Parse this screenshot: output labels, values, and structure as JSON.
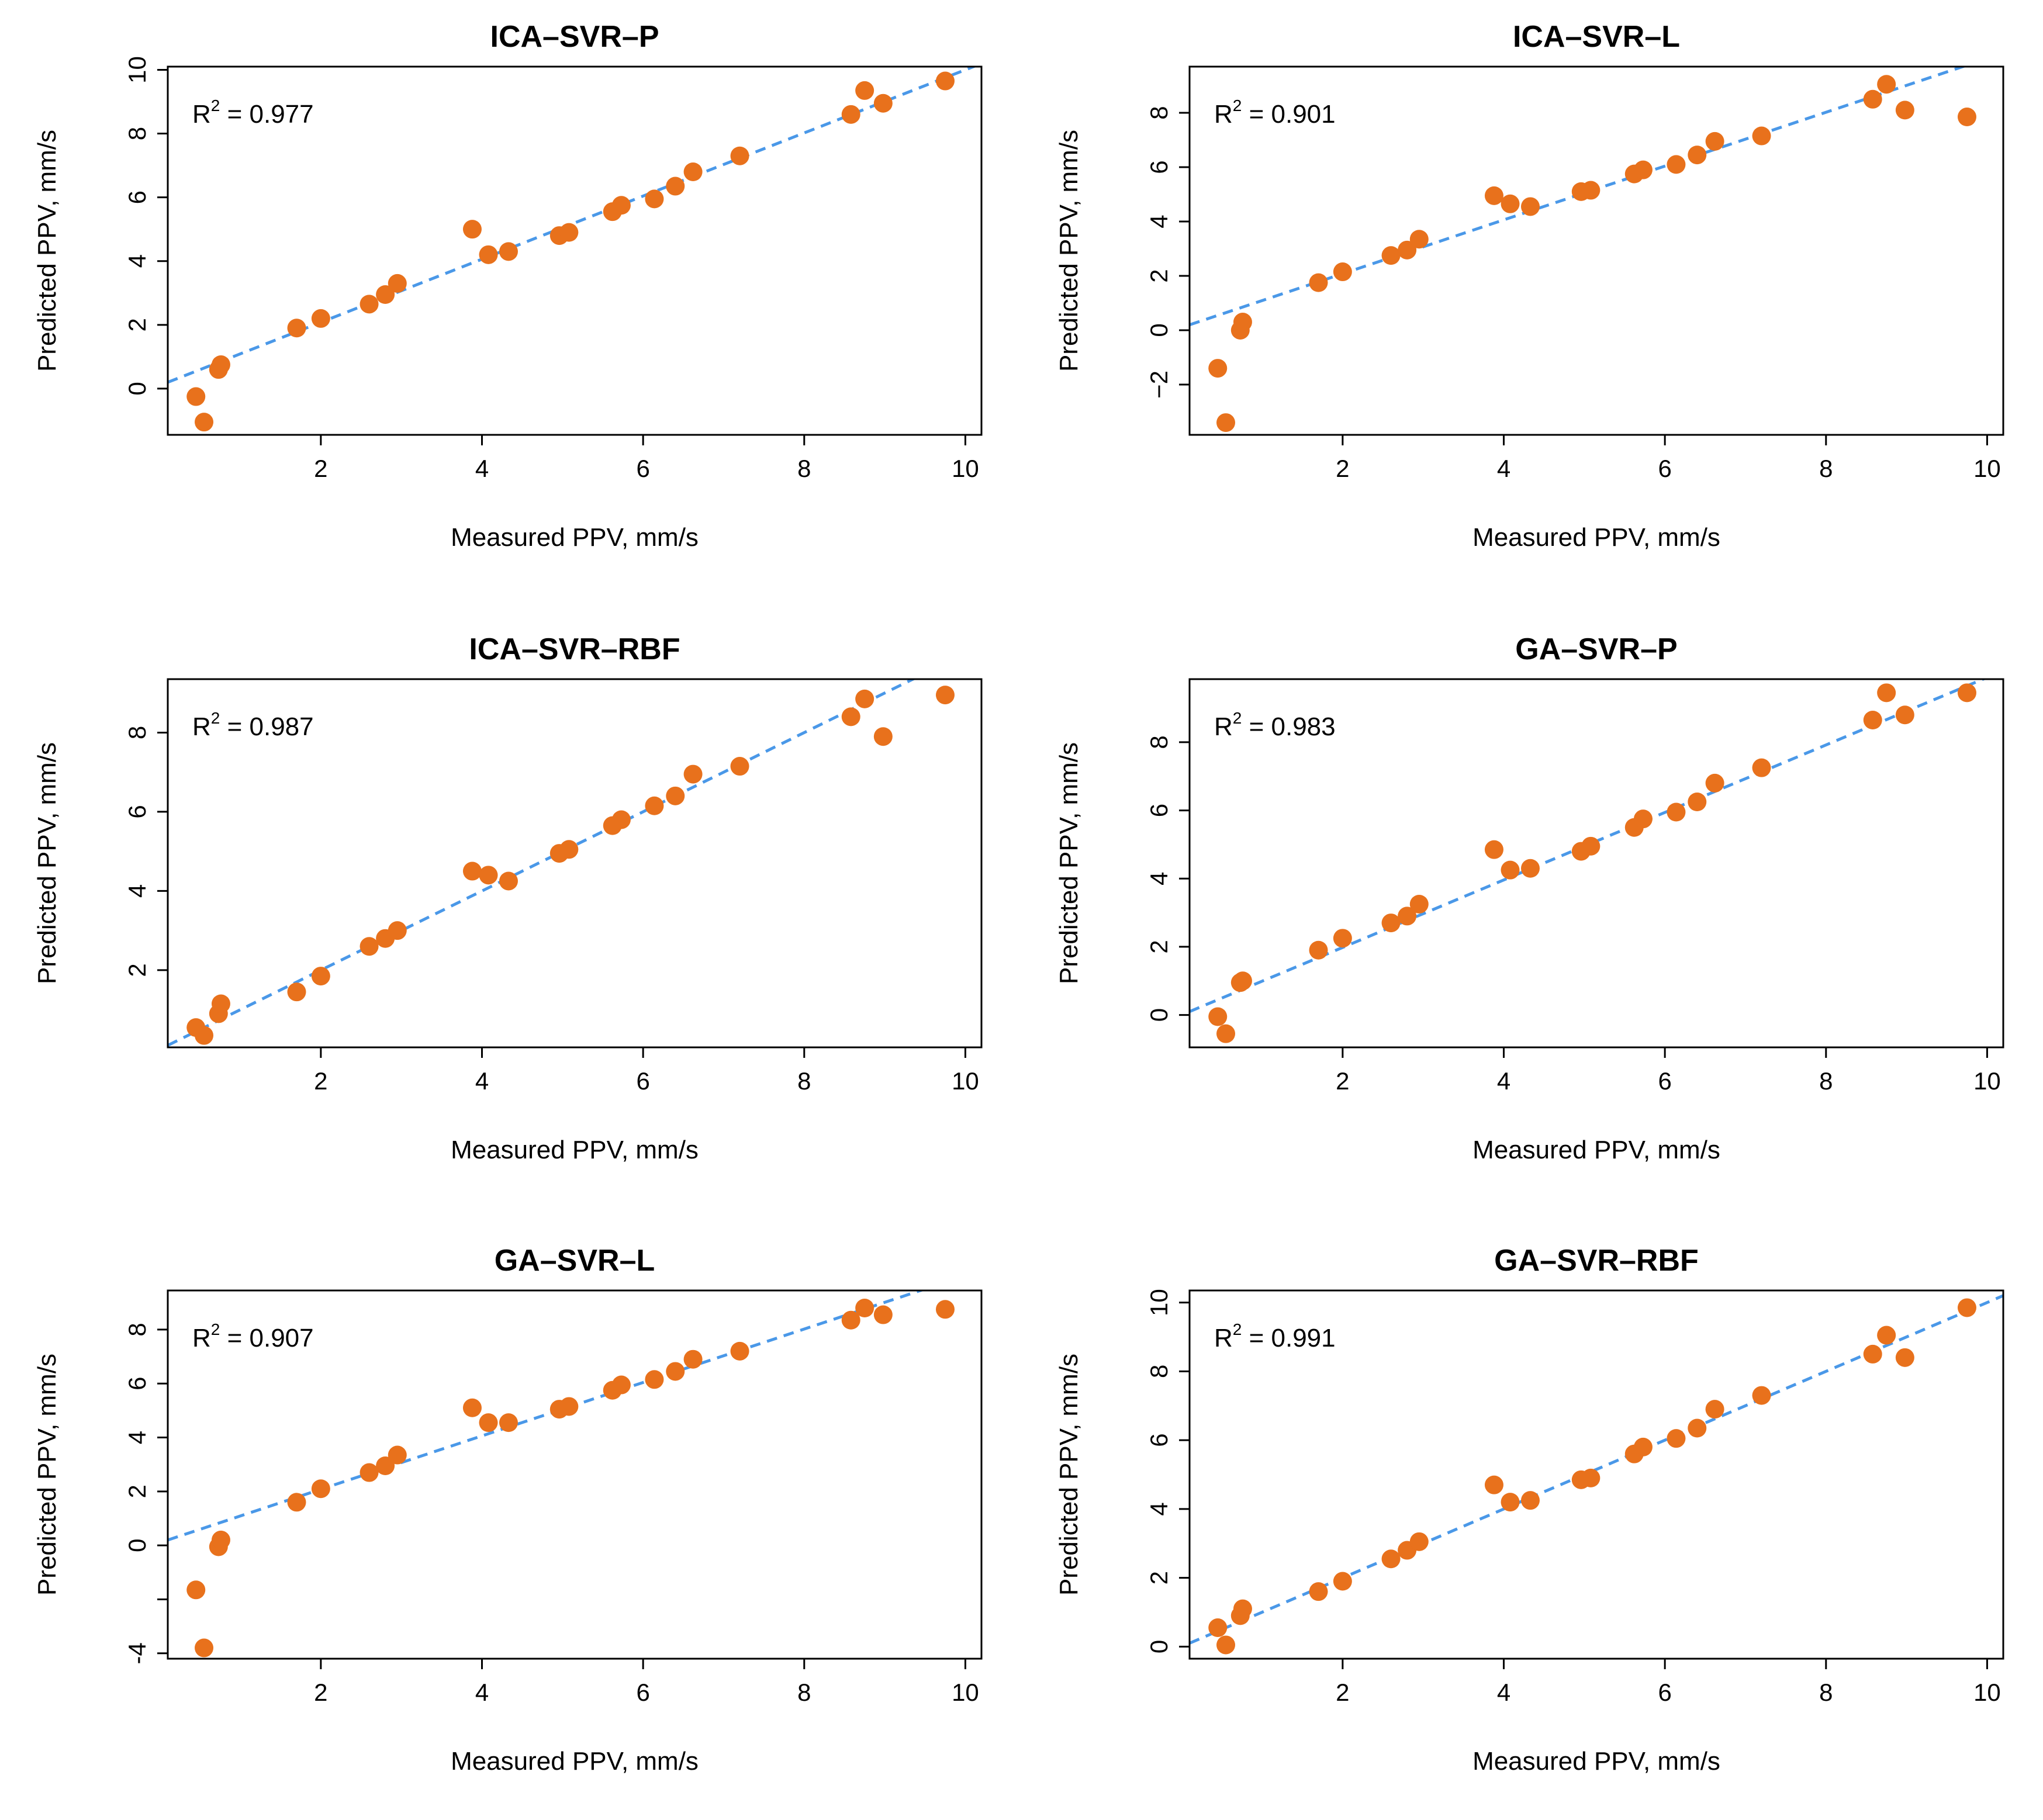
{
  "colors": {
    "point": "#E8711C",
    "fit_line": "#4A98E8",
    "frame": "#000000"
  },
  "chart_data": [
    {
      "type": "scatter",
      "title": "ICA–SVR–P",
      "xlabel": "Measured PPV, mm/s",
      "ylabel": "Predicted PPV, mm/s",
      "annotation": {
        "prefix": "R",
        "superscript": "2",
        "suffix": " = 0.977"
      },
      "xlim": [
        0.1,
        10.2
      ],
      "ylim": [
        -1.45,
        10.1
      ],
      "xticks": [
        2,
        4,
        6,
        8,
        10
      ],
      "yticks": [
        0,
        2,
        4,
        6,
        8,
        10
      ],
      "ytick_labels": [
        "0",
        "2",
        "4",
        "6",
        "8",
        "10"
      ],
      "fit_line": {
        "intercept": 0.1,
        "slope": 0.99
      },
      "points": [
        [
          0.45,
          -0.25
        ],
        [
          0.55,
          -1.05
        ],
        [
          0.73,
          0.6
        ],
        [
          0.76,
          0.75
        ],
        [
          1.7,
          1.9
        ],
        [
          2.0,
          2.2
        ],
        [
          2.6,
          2.65
        ],
        [
          2.8,
          2.95
        ],
        [
          2.95,
          3.3
        ],
        [
          3.88,
          5.0
        ],
        [
          4.08,
          4.2
        ],
        [
          4.33,
          4.3
        ],
        [
          4.96,
          4.8
        ],
        [
          5.08,
          4.9
        ],
        [
          5.62,
          5.55
        ],
        [
          5.73,
          5.75
        ],
        [
          6.14,
          5.95
        ],
        [
          6.4,
          6.35
        ],
        [
          6.62,
          6.8
        ],
        [
          7.2,
          7.3
        ],
        [
          8.58,
          8.6
        ],
        [
          8.75,
          9.35
        ],
        [
          8.98,
          8.95
        ],
        [
          9.75,
          9.65
        ]
      ]
    },
    {
      "type": "scatter",
      "title": "ICA–SVR–L",
      "xlabel": "Measured PPV, mm/s",
      "ylabel": "Predicted PPV, mm/s",
      "annotation": {
        "prefix": "R",
        "superscript": "2",
        "suffix": " = 0.901"
      },
      "xlim": [
        0.1,
        10.2
      ],
      "ylim": [
        -3.85,
        9.7
      ],
      "xticks": [
        2,
        4,
        6,
        8,
        10
      ],
      "yticks": [
        -2,
        0,
        2,
        4,
        6,
        8
      ],
      "ytick_labels": [
        "−2",
        "0",
        "2",
        "4",
        "6",
        "8"
      ],
      "fit_line": {
        "intercept": 0.1,
        "slope": 0.99
      },
      "points": [
        [
          0.45,
          -1.4
        ],
        [
          0.55,
          -3.4
        ],
        [
          0.73,
          0.0
        ],
        [
          0.76,
          0.3
        ],
        [
          1.7,
          1.75
        ],
        [
          2.0,
          2.15
        ],
        [
          2.6,
          2.75
        ],
        [
          2.8,
          2.95
        ],
        [
          2.95,
          3.35
        ],
        [
          3.88,
          4.95
        ],
        [
          4.08,
          4.65
        ],
        [
          4.33,
          4.55
        ],
        [
          4.96,
          5.1
        ],
        [
          5.08,
          5.15
        ],
        [
          5.62,
          5.75
        ],
        [
          5.73,
          5.9
        ],
        [
          6.14,
          6.1
        ],
        [
          6.4,
          6.45
        ],
        [
          6.62,
          6.95
        ],
        [
          7.2,
          7.15
        ],
        [
          8.58,
          8.5
        ],
        [
          8.75,
          9.05
        ],
        [
          8.98,
          8.1
        ],
        [
          9.75,
          7.85
        ]
      ]
    },
    {
      "type": "scatter",
      "title": "ICA–SVR–RBF",
      "xlabel": "Measured PPV, mm/s",
      "ylabel": "Predicted PPV, mm/s",
      "annotation": {
        "prefix": "R",
        "superscript": "2",
        "suffix": " = 0.987"
      },
      "xlim": [
        0.1,
        10.2
      ],
      "ylim": [
        0.05,
        9.35
      ],
      "xticks": [
        2,
        4,
        6,
        8,
        10
      ],
      "yticks": [
        2,
        4,
        6,
        8
      ],
      "ytick_labels": [
        "2",
        "4",
        "6",
        "8"
      ],
      "fit_line": {
        "intercept": 0.0,
        "slope": 1.0
      },
      "points": [
        [
          0.45,
          0.55
        ],
        [
          0.55,
          0.35
        ],
        [
          0.73,
          0.9
        ],
        [
          0.76,
          1.15
        ],
        [
          1.7,
          1.45
        ],
        [
          2.0,
          1.85
        ],
        [
          2.6,
          2.6
        ],
        [
          2.8,
          2.8
        ],
        [
          2.95,
          3.0
        ],
        [
          3.88,
          4.5
        ],
        [
          4.08,
          4.4
        ],
        [
          4.33,
          4.25
        ],
        [
          4.96,
          4.95
        ],
        [
          5.08,
          5.05
        ],
        [
          5.62,
          5.65
        ],
        [
          5.73,
          5.8
        ],
        [
          6.14,
          6.15
        ],
        [
          6.4,
          6.4
        ],
        [
          6.62,
          6.95
        ],
        [
          7.2,
          7.15
        ],
        [
          8.58,
          8.4
        ],
        [
          8.75,
          8.85
        ],
        [
          8.98,
          7.9
        ],
        [
          9.75,
          8.95
        ]
      ]
    },
    {
      "type": "scatter",
      "title": "GA–SVR–P",
      "xlabel": "Measured PPV, mm/s",
      "ylabel": "Predicted PPV, mm/s",
      "annotation": {
        "prefix": "R",
        "superscript": "2",
        "suffix": " = 0.983"
      },
      "xlim": [
        0.1,
        10.2
      ],
      "ylim": [
        -0.95,
        9.85
      ],
      "xticks": [
        2,
        4,
        6,
        8,
        10
      ],
      "yticks": [
        0,
        2,
        4,
        6,
        8
      ],
      "ytick_labels": [
        "0",
        "2",
        "4",
        "6",
        "8"
      ],
      "fit_line": {
        "intercept": 0.0,
        "slope": 0.99
      },
      "points": [
        [
          0.45,
          -0.05
        ],
        [
          0.55,
          -0.55
        ],
        [
          0.73,
          0.95
        ],
        [
          0.76,
          1.0
        ],
        [
          1.7,
          1.9
        ],
        [
          2.0,
          2.25
        ],
        [
          2.6,
          2.7
        ],
        [
          2.8,
          2.9
        ],
        [
          2.95,
          3.25
        ],
        [
          3.88,
          4.85
        ],
        [
          4.08,
          4.25
        ],
        [
          4.33,
          4.3
        ],
        [
          4.96,
          4.8
        ],
        [
          5.08,
          4.95
        ],
        [
          5.62,
          5.5
        ],
        [
          5.73,
          5.75
        ],
        [
          6.14,
          5.95
        ],
        [
          6.4,
          6.25
        ],
        [
          6.62,
          6.8
        ],
        [
          7.2,
          7.25
        ],
        [
          8.58,
          8.65
        ],
        [
          8.75,
          9.45
        ],
        [
          8.98,
          8.8
        ],
        [
          9.75,
          9.45
        ]
      ]
    },
    {
      "type": "scatter",
      "title": "GA–SVR–L",
      "xlabel": "Measured PPV, mm/s",
      "ylabel": "Predicted PPV, mm/s",
      "annotation": {
        "prefix": "R",
        "superscript": "2",
        "suffix": " = 0.907"
      },
      "xlim": [
        0.1,
        10.2
      ],
      "ylim": [
        -4.2,
        9.45
      ],
      "xticks": [
        2,
        4,
        6,
        8,
        10
      ],
      "yticks": [
        -4,
        -2,
        0,
        2,
        4,
        6,
        8
      ],
      "ytick_labels": [
        "-4",
        "",
        "0",
        "2",
        "4",
        "6",
        "8"
      ],
      "fit_line": {
        "intercept": 0.1,
        "slope": 0.99
      },
      "points": [
        [
          0.45,
          -1.65
        ],
        [
          0.55,
          -3.8
        ],
        [
          0.73,
          -0.05
        ],
        [
          0.76,
          0.2
        ],
        [
          1.7,
          1.6
        ],
        [
          2.0,
          2.1
        ],
        [
          2.6,
          2.7
        ],
        [
          2.8,
          2.95
        ],
        [
          2.95,
          3.35
        ],
        [
          3.88,
          5.1
        ],
        [
          4.08,
          4.55
        ],
        [
          4.33,
          4.55
        ],
        [
          4.96,
          5.05
        ],
        [
          5.08,
          5.15
        ],
        [
          5.62,
          5.75
        ],
        [
          5.73,
          5.95
        ],
        [
          6.14,
          6.15
        ],
        [
          6.4,
          6.45
        ],
        [
          6.62,
          6.9
        ],
        [
          7.2,
          7.2
        ],
        [
          8.58,
          8.35
        ],
        [
          8.75,
          8.8
        ],
        [
          8.98,
          8.55
        ],
        [
          9.75,
          8.75
        ]
      ]
    },
    {
      "type": "scatter",
      "title": "GA–SVR–RBF",
      "xlabel": "Measured PPV, mm/s",
      "ylabel": "Predicted PPV, mm/s",
      "annotation": {
        "prefix": "R",
        "superscript": "2",
        "suffix": " = 0.991"
      },
      "xlim": [
        0.1,
        10.2
      ],
      "ylim": [
        -0.35,
        10.35
      ],
      "xticks": [
        2,
        4,
        6,
        8,
        10
      ],
      "yticks": [
        0,
        2,
        4,
        6,
        8,
        10
      ],
      "ytick_labels": [
        "0",
        "2",
        "4",
        "6",
        "8",
        "10"
      ],
      "fit_line": {
        "intercept": 0.0,
        "slope": 1.0
      },
      "points": [
        [
          0.45,
          0.55
        ],
        [
          0.55,
          0.05
        ],
        [
          0.73,
          0.9
        ],
        [
          0.76,
          1.1
        ],
        [
          1.7,
          1.6
        ],
        [
          2.0,
          1.9
        ],
        [
          2.6,
          2.55
        ],
        [
          2.8,
          2.8
        ],
        [
          2.95,
          3.05
        ],
        [
          3.88,
          4.7
        ],
        [
          4.08,
          4.2
        ],
        [
          4.33,
          4.25
        ],
        [
          4.96,
          4.85
        ],
        [
          5.08,
          4.9
        ],
        [
          5.62,
          5.6
        ],
        [
          5.73,
          5.8
        ],
        [
          6.14,
          6.05
        ],
        [
          6.4,
          6.35
        ],
        [
          6.62,
          6.9
        ],
        [
          7.2,
          7.3
        ],
        [
          8.58,
          8.5
        ],
        [
          8.75,
          9.05
        ],
        [
          8.98,
          8.4
        ],
        [
          9.75,
          9.85
        ]
      ]
    }
  ]
}
